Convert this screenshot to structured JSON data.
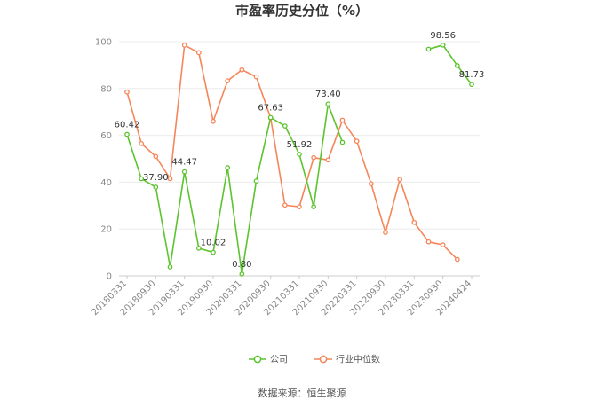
{
  "chart_data": {
    "type": "line",
    "title": "市盈率历史分位（%）",
    "xlabel": "",
    "ylabel": "",
    "ylim": [
      0,
      100
    ],
    "yticks": [
      0,
      20,
      40,
      60,
      80,
      100
    ],
    "x": [
      "20180331",
      "20180630",
      "20180930",
      "20181231",
      "20190331",
      "20190630",
      "20190930",
      "20191231",
      "20200331",
      "20200630",
      "20200930",
      "20201231",
      "20210331",
      "20210630",
      "20210930",
      "20211231",
      "20220331",
      "20220630",
      "20220930",
      "20221231",
      "20230331",
      "20230630",
      "20230930",
      "20231231",
      "20240424"
    ],
    "x_tick_labels": [
      "20180331",
      "20180930",
      "20190331",
      "20190930",
      "20200331",
      "20200930",
      "20210331",
      "20210930",
      "20220331",
      "20220930",
      "20230331",
      "20230930",
      "20240424"
    ],
    "grid": true,
    "legend_position": "bottom",
    "series": [
      {
        "name": "公司",
        "color": "#5cc42e",
        "values": [
          60.42,
          41.5,
          37.9,
          3.8,
          44.47,
          11.8,
          10.02,
          46.2,
          0.8,
          40.5,
          67.63,
          64.0,
          51.92,
          29.5,
          73.4,
          57.0,
          null,
          null,
          null,
          null,
          null,
          96.8,
          98.56,
          89.8,
          81.73
        ],
        "labels": {
          "0": "60.42",
          "2": "37.90",
          "4": "44.47",
          "6": "10.02",
          "8": "0.80",
          "10": "67.63",
          "12": "51.92",
          "14": "73.40",
          "22": "98.56",
          "24": "81.73"
        }
      },
      {
        "name": "行业中位数",
        "color": "#f5865a",
        "values": [
          78.5,
          56.5,
          51.0,
          41.5,
          98.5,
          95.3,
          66.0,
          83.3,
          88.0,
          85.0,
          67.5,
          30.2,
          29.5,
          50.5,
          49.5,
          66.5,
          57.5,
          39.3,
          18.5,
          41.2,
          22.8,
          14.5,
          13.2,
          7.0,
          null
        ]
      }
    ]
  },
  "source": "数据来源：恒生聚源"
}
